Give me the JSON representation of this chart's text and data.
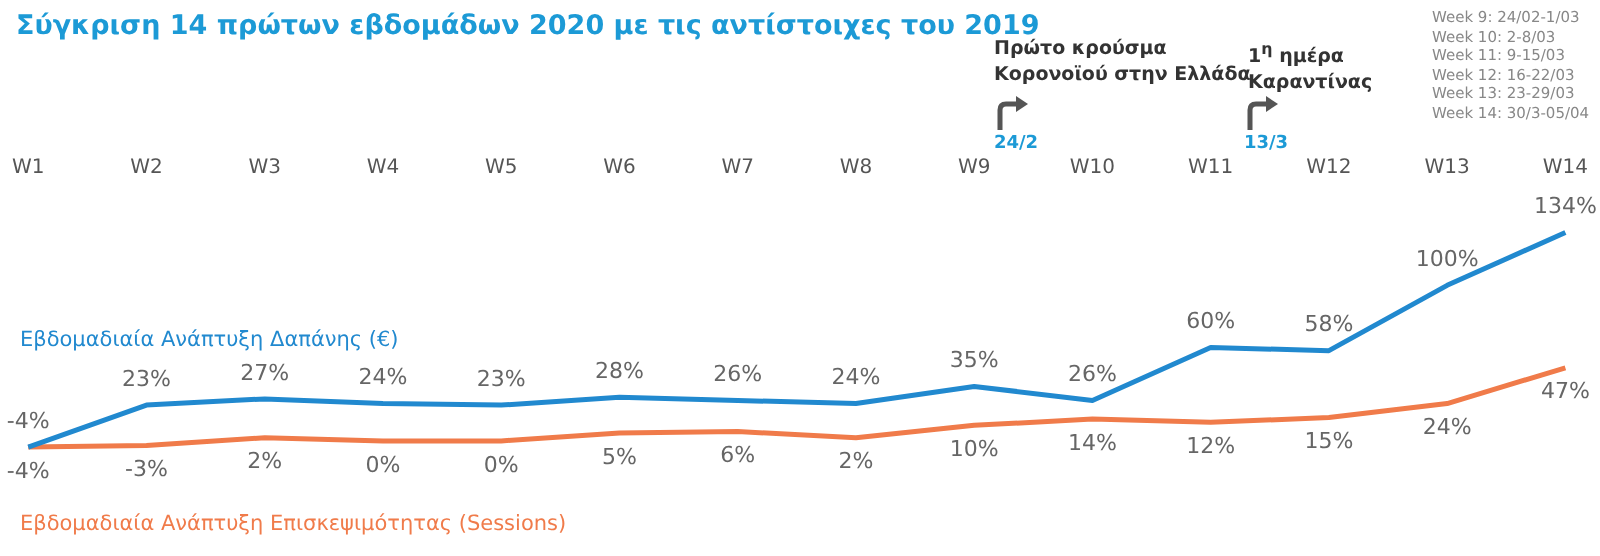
{
  "chart_data": {
    "type": "line",
    "title": "Σύγκριση 14 πρώτων εβδομάδων 2020 με τις αντίστοιχες του 2019",
    "categories": [
      "W1",
      "W2",
      "W3",
      "W4",
      "W5",
      "W6",
      "W7",
      "W8",
      "W9",
      "W10",
      "W11",
      "W12",
      "W13",
      "W14"
    ],
    "series": [
      {
        "name": "Εβδομαδιαία Ανάπτυξη Δαπάνης (€)",
        "color": "#2189cf",
        "values": [
          -4,
          23,
          27,
          24,
          23,
          28,
          26,
          24,
          35,
          26,
          60,
          58,
          100,
          134
        ],
        "value_labels": [
          "-4%",
          "23%",
          "27%",
          "24%",
          "23%",
          "28%",
          "26%",
          "24%",
          "35%",
          "26%",
          "60%",
          "58%",
          "100%",
          "134%"
        ]
      },
      {
        "name": "Εβδομαδιαία Ανάπτυξη Επισκεψιμότητας (Sessions)",
        "color": "#f07b4a",
        "values": [
          -4,
          -3,
          2,
          0,
          0,
          5,
          6,
          2,
          10,
          14,
          12,
          15,
          24,
          47
        ],
        "value_labels": [
          "-4%",
          "-3%",
          "2%",
          "0%",
          "0%",
          "5%",
          "6%",
          "2%",
          "10%",
          "14%",
          "12%",
          "15%",
          "24%",
          "47%"
        ]
      }
    ],
    "marker": "none",
    "grid": false,
    "legend": false,
    "annotations": [
      "Πρώτο κρούσμα Κορονοϊού στην Ελλάδα",
      "24/2",
      "1$^{η}$ ημέρα Καραντίνας",
      "13/3",
      "Week 9: 24/02-1/03",
      "Week 10: 2-8/03",
      "Week 11: 9-15/03",
      "Week 12: 16-22/03",
      "Week 13: 23-29/03",
      "Week 14: 30/3-05/04"
    ]
  }
}
